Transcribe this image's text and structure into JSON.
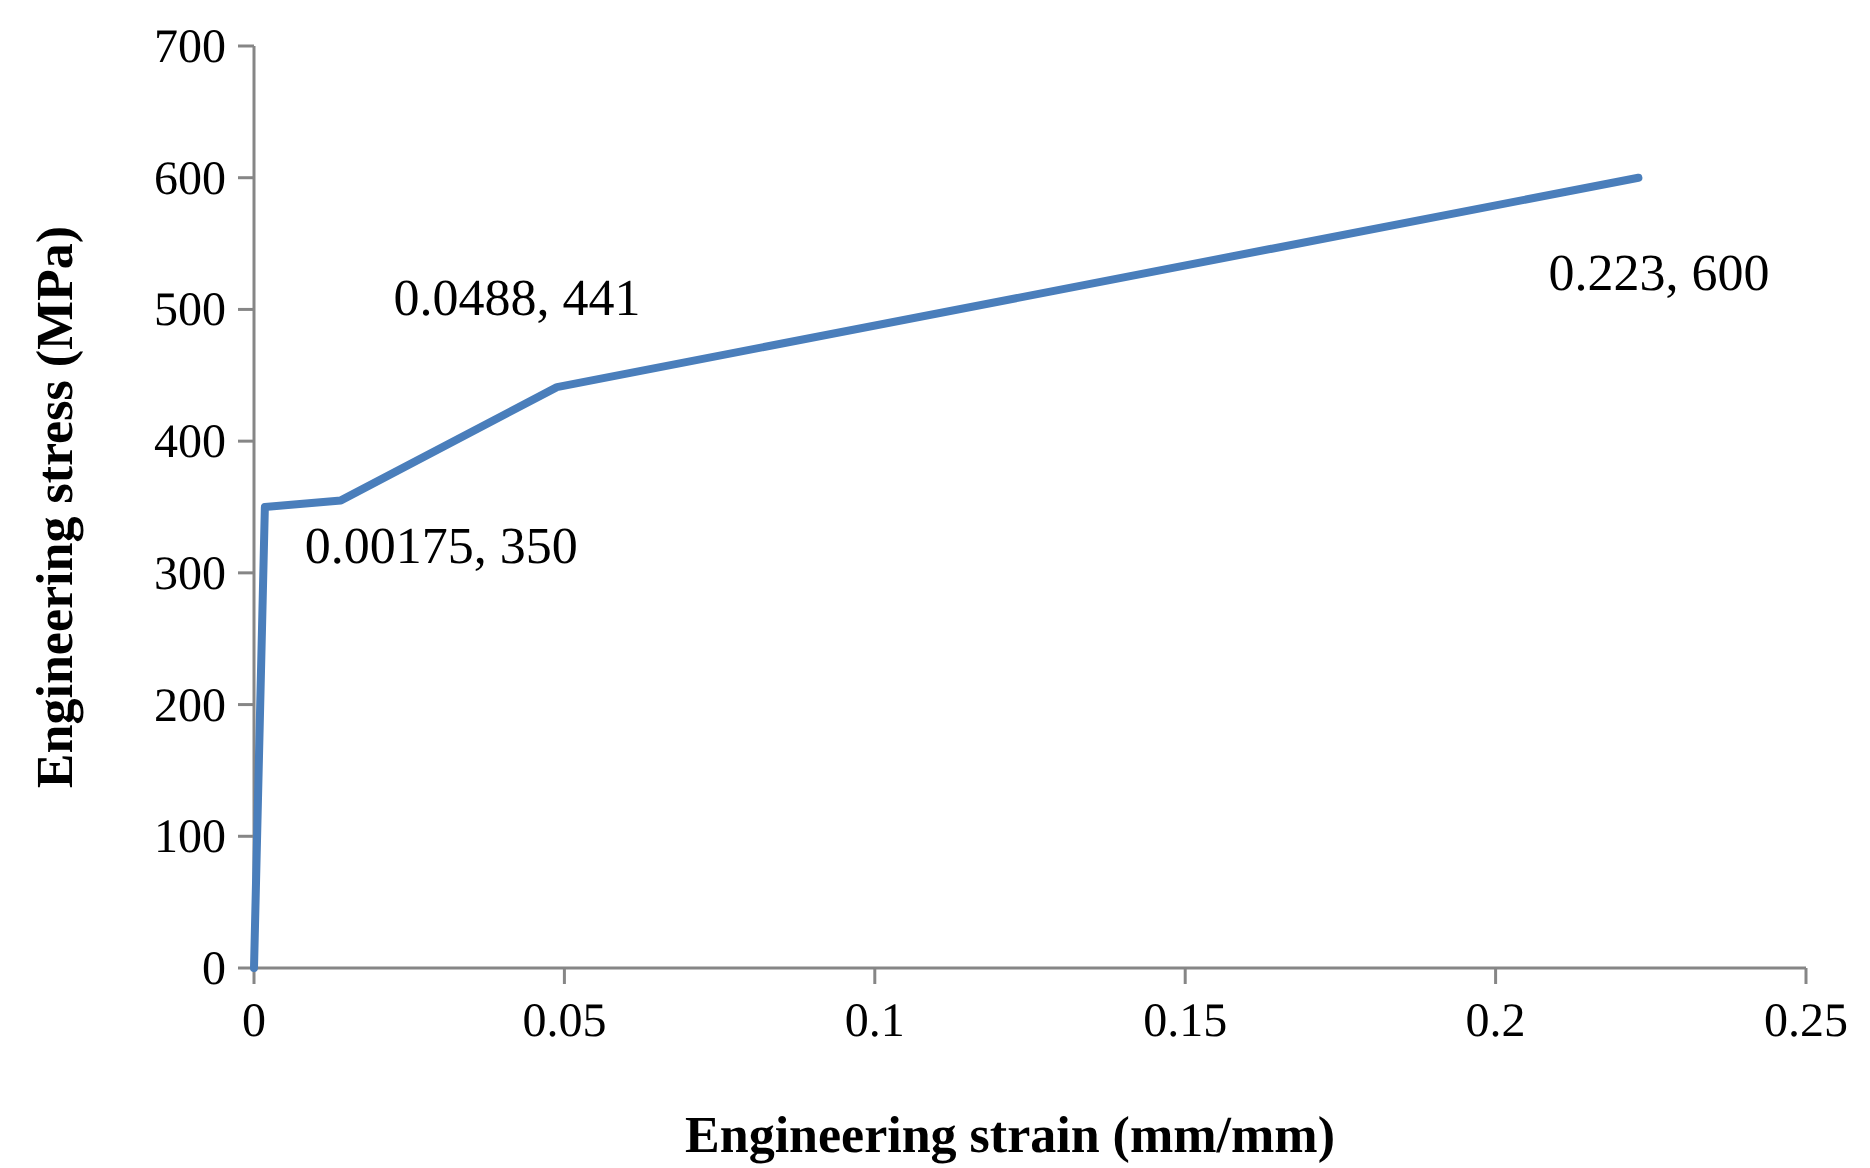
{
  "chart_data": {
    "type": "line",
    "xlabel": "Engineering strain (mm/mm)",
    "ylabel": "Engineering stress (MPa)",
    "x": [
      0,
      0.00175,
      0.014,
      0.0488,
      0.223
    ],
    "series": [
      {
        "color": "#4a7ebb",
        "values": [
          0,
          350,
          355,
          441,
          600
        ]
      }
    ],
    "xlim": [
      0,
      0.25
    ],
    "xticks": [
      0,
      0.05,
      0.1,
      0.15,
      0.2,
      0.25
    ],
    "ylim": [
      0,
      700
    ],
    "yticks": [
      0,
      100,
      200,
      300,
      400,
      500,
      600,
      700
    ],
    "grid": false,
    "marker": "none",
    "line_style": "solid",
    "annotations": [
      {
        "text": "0.00175, 350",
        "x": 0.00175,
        "y": 350
      },
      {
        "text": "0.0488, 441",
        "x": 0.0488,
        "y": 441
      },
      {
        "text": "0.223, 600",
        "x": 0.223,
        "y": 600
      }
    ]
  }
}
